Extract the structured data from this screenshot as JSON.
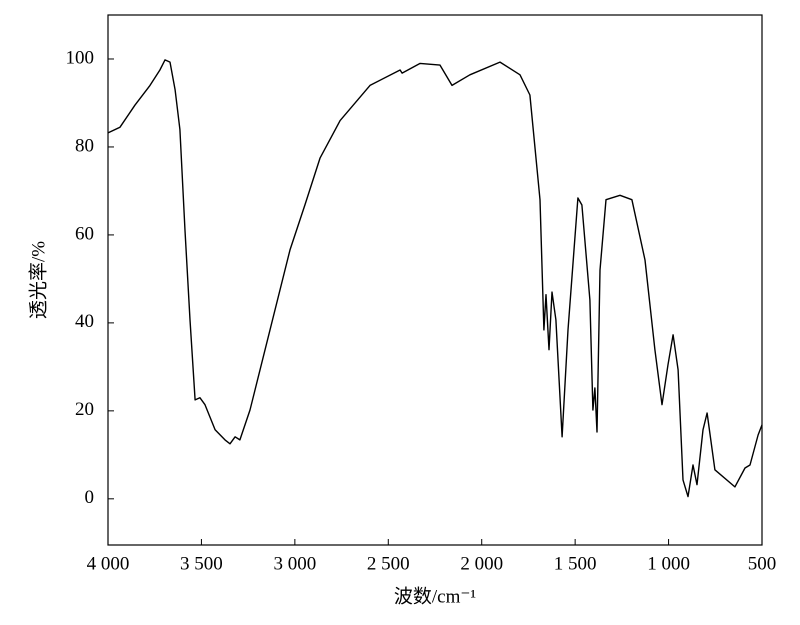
{
  "chart_data": {
    "type": "line",
    "xlabel": "波数/cm⁻¹",
    "ylabel": "透光率/%",
    "xlim": [
      4000,
      500
    ],
    "ylim": [
      -10.5,
      110
    ],
    "xticks": [
      {
        "value": 4000,
        "label": "4 000"
      },
      {
        "value": 3500,
        "label": "3 500"
      },
      {
        "value": 3000,
        "label": "3 000"
      },
      {
        "value": 2500,
        "label": "2 500"
      },
      {
        "value": 2000,
        "label": "2 000"
      },
      {
        "value": 1500,
        "label": "1 500"
      },
      {
        "value": 1000,
        "label": "1 000"
      },
      500
    ],
    "yticks": [
      0,
      20,
      40,
      60,
      80,
      100
    ],
    "series": [
      {
        "color": "#000000",
        "x": [
          4000,
          3936,
          3856,
          3775,
          3722,
          3695,
          3668,
          3641,
          3615,
          3588,
          3561,
          3534,
          3508,
          3481,
          3427,
          3374,
          3347,
          3320,
          3294,
          3240,
          3133,
          3026,
          2946,
          2865,
          2758,
          2598,
          2437,
          2426,
          2330,
          2223,
          2159,
          2063,
          1902,
          1795,
          1742,
          1688,
          1667,
          1656,
          1640,
          1624,
          1603,
          1570,
          1538,
          1485,
          1464,
          1421,
          1405,
          1394,
          1383,
          1367,
          1335,
          1260,
          1196,
          1126,
          1073,
          1035,
          1003,
          976,
          949,
          923,
          896,
          869,
          848,
          816,
          794,
          752,
          645,
          591,
          564,
          521,
          500
        ],
        "values": [
          83.2,
          84.5,
          89.5,
          94,
          97.5,
          99.8,
          99.3,
          93,
          84,
          61,
          40.7,
          22.5,
          23,
          21.4,
          15.7,
          13.4,
          12.5,
          14.1,
          13.4,
          20.2,
          38.4,
          56.6,
          66.8,
          77.5,
          86,
          94,
          97.5,
          96.8,
          99,
          98.6,
          94,
          96.4,
          99.3,
          96.4,
          91.8,
          68,
          38.4,
          46.4,
          33.9,
          47,
          40.7,
          14.1,
          38.4,
          68.4,
          66.8,
          45.2,
          20.2,
          25.2,
          15.2,
          52,
          68,
          69,
          68,
          54.3,
          33.9,
          21.4,
          30.5,
          37.3,
          29.3,
          4.3,
          0.5,
          7.7,
          3.2,
          15.7,
          19.5,
          6.6,
          2.7,
          7,
          7.7,
          14.5,
          16.8
        ]
      }
    ]
  }
}
